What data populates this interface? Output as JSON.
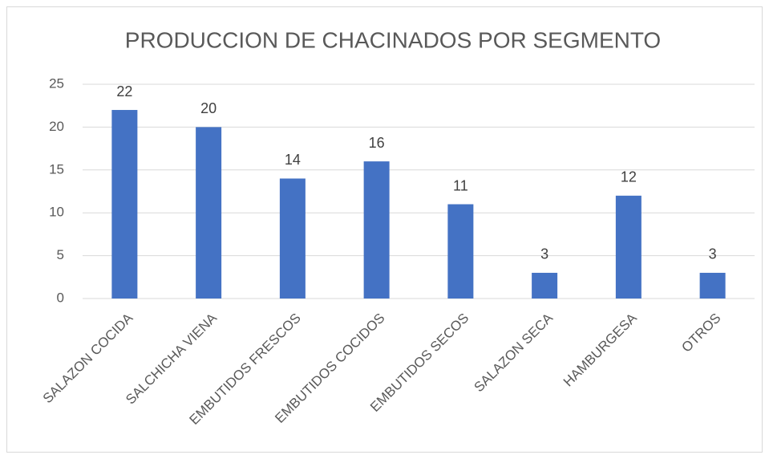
{
  "chart_data": {
    "type": "bar",
    "title": "PRODUCCION DE CHACINADOS POR SEGMENTO",
    "categories": [
      "SALAZON COCIDA",
      "SALCHICHA VIENA",
      "EMBUTIDOS FRESCOS",
      "EMBUTIDOS COCIDOS",
      "EMBUTIDOS SECOS",
      "SALAZON SECA",
      "HAMBURGESA",
      "OTROS"
    ],
    "values": [
      22,
      20,
      14,
      16,
      11,
      3,
      12,
      3
    ],
    "color": "#4472c4",
    "ylim": [
      0,
      25
    ],
    "yticks": [
      0,
      5,
      10,
      15,
      20,
      25
    ],
    "grid": true
  }
}
